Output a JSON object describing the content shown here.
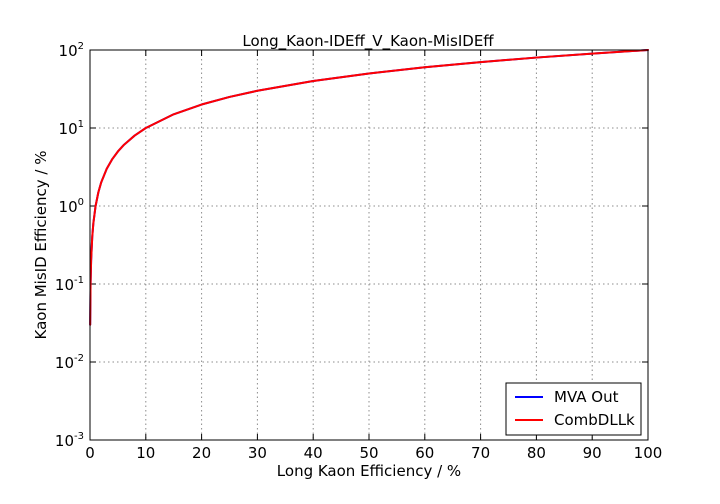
{
  "chart_data": {
    "type": "line",
    "title": "Long_Kaon-IDEff_V_Kaon-MisIDEff",
    "xlabel": "Long Kaon Efficiency / %",
    "ylabel": "Kaon MisID Efficiency / %",
    "xlim": [
      0,
      100
    ],
    "ylim": [
      0.001,
      100
    ],
    "yscale": "log",
    "grid": true,
    "legend_position": "lower-right",
    "x_ticks": [
      {
        "value": 0,
        "label": "0"
      },
      {
        "value": 10,
        "label": "10"
      },
      {
        "value": 20,
        "label": "20"
      },
      {
        "value": 30,
        "label": "30"
      },
      {
        "value": 40,
        "label": "40"
      },
      {
        "value": 50,
        "label": "50"
      },
      {
        "value": 60,
        "label": "60"
      },
      {
        "value": 70,
        "label": "70"
      },
      {
        "value": 80,
        "label": "80"
      },
      {
        "value": 90,
        "label": "90"
      },
      {
        "value": 100,
        "label": "100"
      }
    ],
    "y_ticks": [
      {
        "value": 0.001,
        "base": "10",
        "exp": "-3"
      },
      {
        "value": 0.01,
        "base": "10",
        "exp": "-2"
      },
      {
        "value": 0.1,
        "base": "10",
        "exp": "-1"
      },
      {
        "value": 1,
        "base": "10",
        "exp": "0"
      },
      {
        "value": 10,
        "base": "10",
        "exp": "1"
      },
      {
        "value": 100,
        "base": "10",
        "exp": "2"
      }
    ],
    "series": [
      {
        "name": "MVA Out",
        "color": "#0000ff",
        "x": [
          0.03,
          0.1,
          0.2,
          0.4,
          0.6,
          1,
          1.5,
          2,
          3,
          4,
          5,
          6,
          8,
          10,
          15,
          20,
          25,
          30,
          40,
          50,
          60,
          70,
          80,
          90,
          100
        ],
        "y": [
          0.03,
          0.1,
          0.2,
          0.4,
          0.6,
          1,
          1.5,
          2,
          3,
          4,
          5,
          6,
          8,
          10,
          15,
          20,
          25,
          30,
          40,
          50,
          60,
          70,
          80,
          90,
          100
        ]
      },
      {
        "name": "CombDLLk",
        "color": "#ff0000",
        "x": [
          0.03,
          0.1,
          0.2,
          0.4,
          0.6,
          1,
          1.5,
          2,
          3,
          4,
          5,
          6,
          8,
          10,
          15,
          20,
          25,
          30,
          40,
          50,
          60,
          70,
          80,
          90,
          100
        ],
        "y": [
          0.03,
          0.1,
          0.2,
          0.4,
          0.6,
          1,
          1.5,
          2,
          3,
          4,
          5,
          6,
          8,
          10,
          15,
          20,
          25,
          30,
          40,
          50,
          60,
          70,
          80,
          90,
          100
        ]
      }
    ]
  }
}
